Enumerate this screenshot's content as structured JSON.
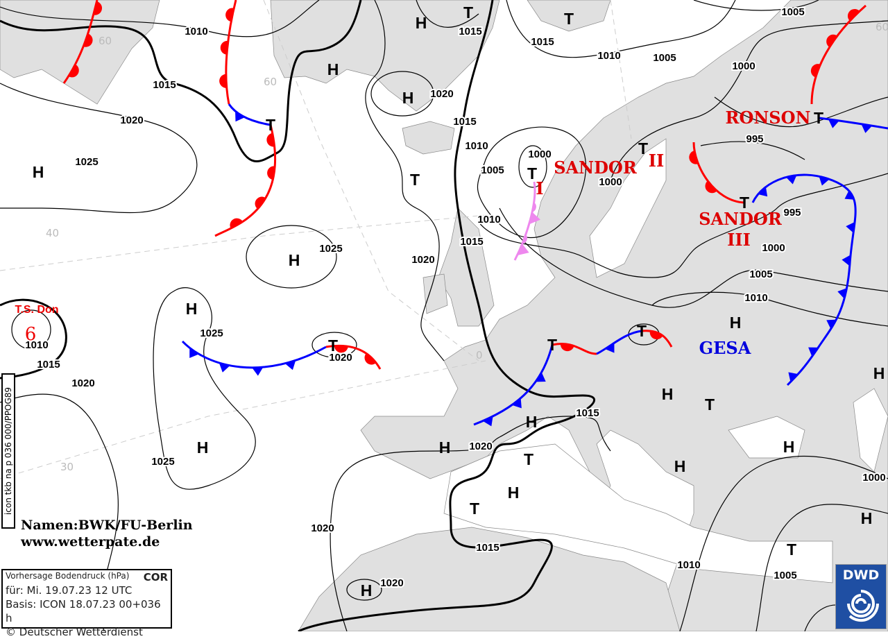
{
  "map": {
    "land_color": "#e0e0e0",
    "warm_front_color": "#ff0000",
    "cold_front_color": "#0000ff",
    "occlusion_color": "#ee88ee",
    "lat_labels": [
      "60",
      "60",
      "40",
      "30",
      "0",
      "60"
    ],
    "isobar_labels": [
      "1010",
      "1015",
      "1015",
      "1010",
      "1005",
      "1005",
      "1000",
      "1020",
      "1015",
      "1020",
      "1025",
      "1015",
      "1010",
      "1000",
      "1005",
      "995",
      "1000",
      "1010",
      "995",
      "1015",
      "1000",
      "1025",
      "1020",
      "1005",
      "1010",
      "1025",
      "1020",
      "1010",
      "1015",
      "1020",
      "1015",
      "1020",
      "1025",
      "1000",
      "1020",
      "1015",
      "1010",
      "1005",
      "1020"
    ],
    "pressure_centers": [
      "H",
      "T",
      "T",
      "H",
      "H",
      "T",
      "H",
      "T",
      "T",
      "T",
      "T",
      "T",
      "H",
      "H",
      "T",
      "T",
      "T",
      "H",
      "H",
      "H",
      "T",
      "H",
      "H",
      "H",
      "T",
      "H",
      "H",
      "H",
      "T",
      "H",
      "T",
      "H"
    ],
    "systems": {
      "sandor": "SANDOR",
      "sandor_ii": "II",
      "sandor_i": "I",
      "ronson": "RONSON",
      "sandor_iii_a": "SANDOR",
      "sandor_iii_b": "III",
      "gesa": "GESA",
      "ts_don": "T.S. Don",
      "ts_symbol": "6"
    }
  },
  "credits": {
    "names": "Namen:BWK/FU-Berlin",
    "website": "www.wetterpate.de"
  },
  "vertical_label": "icon tkb na p 036 000/PPOG89",
  "infobox": {
    "title": "Vorhersage Bodendruck (hPa)",
    "badge": "COR",
    "valid": "für:  Mi. 19.07.23  12 UTC",
    "basis": "Basis: ICON  18.07.23 00+036 h",
    "copyright": "© Deutscher Wetterdienst"
  },
  "logo": {
    "text": "DWD",
    "color": "#1f4fa3"
  }
}
